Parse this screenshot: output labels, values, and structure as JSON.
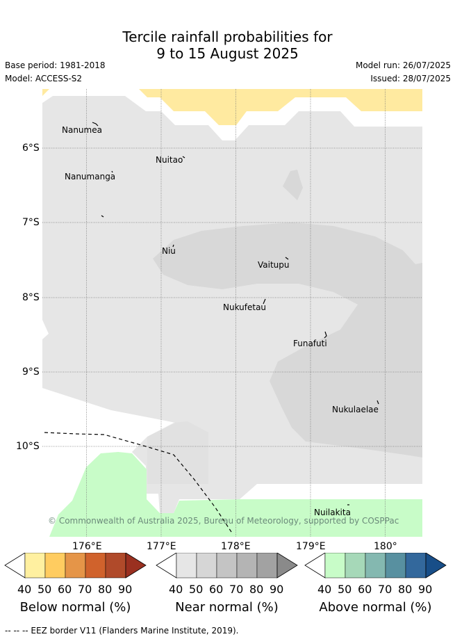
{
  "title_line1": "Tercile rainfall probabilities for",
  "title_line2": "9 to 15 August 2025",
  "base_period": "Base period: 1981-2018",
  "model": "Model: ACCESS-S2",
  "model_run": "Model run: 26/07/2025",
  "issued": "Issued: 28/07/2025",
  "lat_labels": [
    "6°S",
    "7°S",
    "8°S",
    "9°S",
    "10°S"
  ],
  "lon_labels": [
    "176°E",
    "177°E",
    "178°E",
    "179°E",
    "180°"
  ],
  "places": [
    {
      "name": "Nanumea"
    },
    {
      "name": "Nuitao"
    },
    {
      "name": "Nanumanga"
    },
    {
      "name": "Niu"
    },
    {
      "name": "Vaitupu"
    },
    {
      "name": "Nukufetau"
    },
    {
      "name": "Funafuti"
    },
    {
      "name": "Nukulaelae"
    },
    {
      "name": "Nuilakita"
    }
  ],
  "copyright": "© Commonwealth of Australia 2025, Bureau of Meteorology, supported by COSPPac",
  "colorbars": [
    {
      "label": "Below normal (%)",
      "ticks": [
        "40",
        "50",
        "60",
        "70",
        "80",
        "90"
      ],
      "colors": [
        "#ffffff",
        "#fff0a0",
        "#ffcc60",
        "#e59548",
        "#d0622c",
        "#b04a2a",
        "#9a3020"
      ]
    },
    {
      "label": "Near normal (%)",
      "ticks": [
        "40",
        "50",
        "60",
        "70",
        "80",
        "90"
      ],
      "colors": [
        "#ffffff",
        "#e6e6e6",
        "#d6d6d6",
        "#c4c4c4",
        "#b4b4b4",
        "#a2a2a2",
        "#8a8a8a"
      ]
    },
    {
      "label": "Above normal (%)",
      "ticks": [
        "40",
        "50",
        "60",
        "70",
        "80",
        "90"
      ],
      "colors": [
        "#ffffff",
        "#c8fcc8",
        "#a6d8b8",
        "#84b8b0",
        "#5890a0",
        "#33689c",
        "#184e88"
      ]
    }
  ],
  "footnote": "-- -- -- EEZ border V11 (Flanders Marine Institute, 2019).",
  "colors": {
    "below_40_50": "#ffeaa0",
    "near_40_50": "#e6e6e6",
    "near_50_60": "#d8d8d8",
    "above_40_50": "#c8fcc8"
  }
}
